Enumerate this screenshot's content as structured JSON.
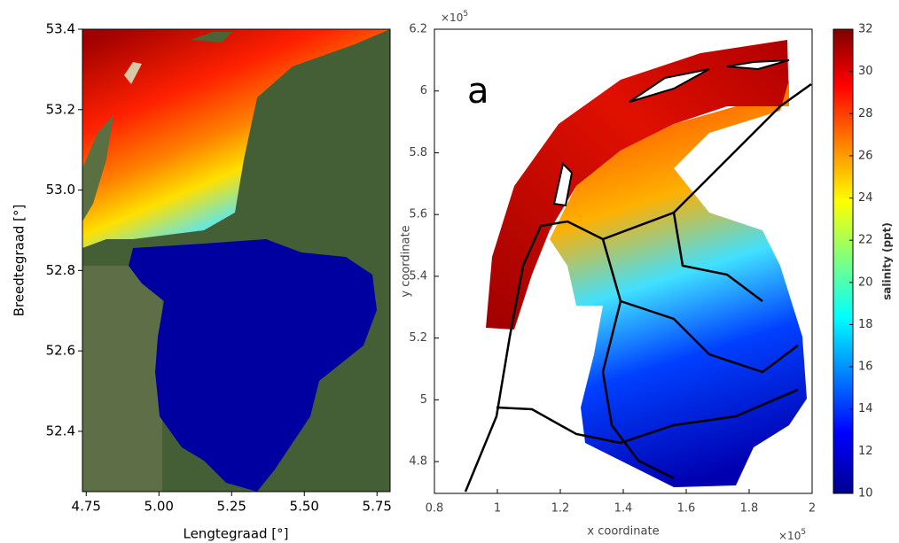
{
  "chart_data": [
    {
      "type": "map",
      "xlabel": "Lengtegraad [°]",
      "ylabel": "Breedtegraad [°]",
      "xlim": [
        4.737,
        5.795
      ],
      "xticks": [
        4.75,
        {
          "value": 5,
          "label": "5.00"
        },
        5.25,
        {
          "value": 5.5,
          "label": "5.50"
        },
        5.75
      ],
      "ylim": [
        52.25,
        53.4
      ],
      "yticks": [
        52.4,
        52.6,
        52.8,
        {
          "value": 53,
          "label": "53.0"
        },
        53.2,
        53.4
      ]
    },
    {
      "type": "map",
      "annotation": "a",
      "xlabel": "x coordinate",
      "ylabel": "y coordinate",
      "exponent_base": "×10",
      "exponent_power": "5",
      "xlim": [
        0.8,
        2
      ],
      "xticks": [
        0.8,
        1,
        1.2,
        1.4,
        1.6,
        1.8,
        2
      ],
      "ylim": [
        4.697,
        6.2
      ],
      "yticks": [
        4.8,
        5,
        5.2,
        5.4,
        5.6,
        5.8,
        6,
        6.2
      ],
      "colorbar": {
        "label": "salinity (ppt)",
        "lim": [
          10,
          32
        ],
        "ticks": [
          10,
          12,
          14,
          16,
          18,
          20,
          22,
          24,
          26,
          28,
          30,
          32
        ]
      }
    }
  ]
}
